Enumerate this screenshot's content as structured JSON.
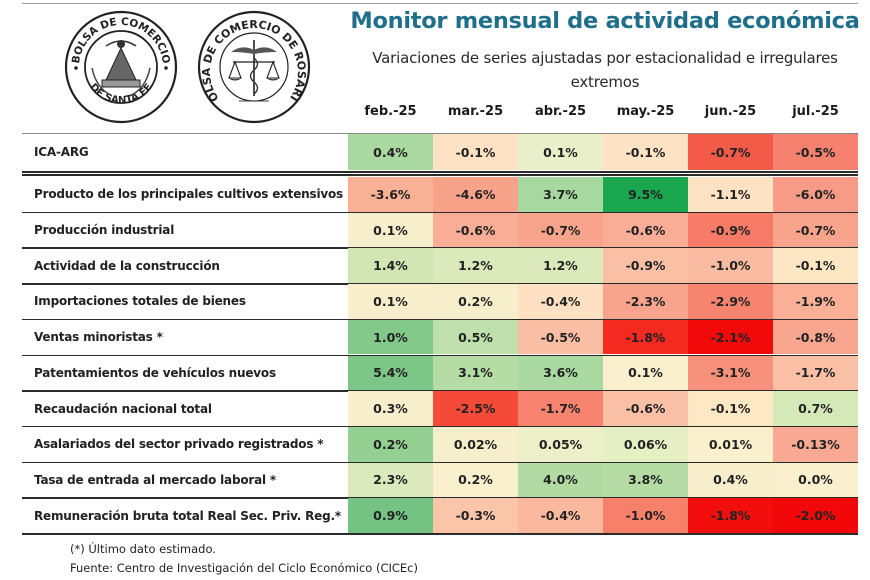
{
  "header": {
    "title": "Monitor mensual de actividad económica",
    "subtitle": "Variaciones de series ajustadas por estacionalidad e irregulares extremos"
  },
  "logos": [
    {
      "name": "bolsa-santa-fe-logo",
      "text_top": "BOLSA DE COMERCIO",
      "text_bottom": "DE SANTA FE"
    },
    {
      "name": "bolsa-rosario-logo",
      "text": "BOLSA DE COMERCIO DE ROSARIO"
    }
  ],
  "chart_data": {
    "type": "heatmap",
    "title": "Monitor mensual de actividad económica",
    "subtitle": "Variaciones de series ajustadas por estacionalidad e irregulares extremos",
    "columns": [
      "feb.-25",
      "mar.-25",
      "abr.-25",
      "may.-25",
      "jun.-25",
      "jul.-25"
    ],
    "unit": "%",
    "rows": [
      {
        "label": "ICA-ARG",
        "values": [
          "0.4%",
          "-0.1%",
          "0.1%",
          "-0.1%",
          "-0.7%",
          "-0.5%"
        ],
        "colors": [
          "#a9d8a0",
          "#fde3c3",
          "#e9efc8",
          "#fde3c3",
          "#f45a48",
          "#f7816f"
        ]
      },
      {
        "label": "Producto de los principales cultivos extensivos",
        "values": [
          "-3.6%",
          "-4.6%",
          "3.7%",
          "9.5%",
          "-1.1%",
          "-6.0%"
        ],
        "colors": [
          "#f9b196",
          "#f8a28a",
          "#a7d8a0",
          "#1aa64f",
          "#fde3c3",
          "#f79a86"
        ]
      },
      {
        "label": "Producción industrial",
        "values": [
          "0.1%",
          "-0.6%",
          "-0.7%",
          "-0.6%",
          "-0.9%",
          "-0.7%"
        ],
        "colors": [
          "#f7efcc",
          "#f9ad96",
          "#f8a38c",
          "#f9ad96",
          "#f77b67",
          "#f8a38c"
        ]
      },
      {
        "label": "Actividad de la construcción",
        "values": [
          "1.4%",
          "1.2%",
          "1.2%",
          "-0.9%",
          "-1.0%",
          "-0.1%"
        ],
        "colors": [
          "#d2e6b4",
          "#dbe9bb",
          "#dbe9bb",
          "#f9c0a6",
          "#f9bca2",
          "#fce6c4"
        ]
      },
      {
        "label": "Importaciones totales de bienes",
        "values": [
          "0.1%",
          "0.2%",
          "-0.4%",
          "-2.3%",
          "-2.9%",
          "-1.9%"
        ],
        "colors": [
          "#f9eecb",
          "#f7efcc",
          "#fde1c2",
          "#f8a38c",
          "#f7846f",
          "#f9b097"
        ]
      },
      {
        "label": "Ventas minoristas *",
        "values": [
          "1.0%",
          "0.5%",
          "-0.5%",
          "-1.8%",
          "-2.1%",
          "-0.8%"
        ],
        "colors": [
          "#83c98a",
          "#bfe0ad",
          "#f9bea4",
          "#f42a20",
          "#f20a0a",
          "#f8a690"
        ]
      },
      {
        "label": "Patentamientos de vehículos nuevos",
        "values": [
          "5.4%",
          "3.1%",
          "3.6%",
          "0.1%",
          "-3.1%",
          "-1.7%"
        ],
        "colors": [
          "#7cc687",
          "#b5dca5",
          "#a9d8a0",
          "#fbf0cd",
          "#f8917b",
          "#f9c0a6"
        ]
      },
      {
        "label": "Recaudación nacional total",
        "values": [
          "0.3%",
          "-2.5%",
          "-1.7%",
          "-0.6%",
          "-0.1%",
          "0.7%"
        ],
        "colors": [
          "#f7efcc",
          "#f54a38",
          "#f8846f",
          "#f9c0a6",
          "#fde8c6",
          "#d5e8b8"
        ]
      },
      {
        "label": "Asalariados del sector privado registrados *",
        "values": [
          "0.2%",
          "0.02%",
          "0.05%",
          "0.06%",
          "0.01%",
          "-0.13%"
        ],
        "colors": [
          "#94d092",
          "#f7efcc",
          "#ecf0c8",
          "#e6eec4",
          "#fbf0cd",
          "#f9a993"
        ]
      },
      {
        "label": "Tasa de entrada al mercado laboral *",
        "values": [
          "2.3%",
          "0.2%",
          "4.0%",
          "3.8%",
          "0.4%",
          "0.0%"
        ],
        "colors": [
          "#dce9bc",
          "#fbf0cd",
          "#b2dba4",
          "#b6dca6",
          "#f8eecb",
          "#fbf0cd"
        ]
      },
      {
        "label": "Remuneración bruta total Real Sec. Priv. Reg.*",
        "values": [
          "0.9%",
          "-0.3%",
          "-0.4%",
          "-1.0%",
          "-1.8%",
          "-2.0%"
        ],
        "colors": [
          "#74c383",
          "#fbc5aa",
          "#fab89e",
          "#f8806b",
          "#f20e0c",
          "#f20808"
        ]
      }
    ]
  },
  "footnotes": {
    "estimate_note": "(*) Último dato estimado.",
    "source": "Fuente: Centro de Investigación del Ciclo Económico (CICEc)"
  }
}
